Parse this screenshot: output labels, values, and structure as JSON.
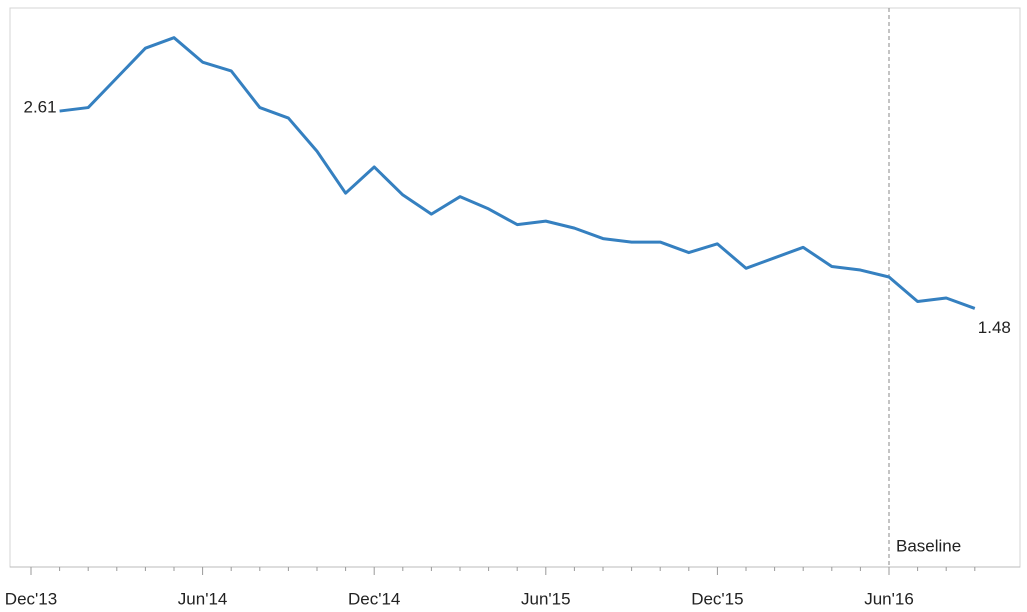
{
  "chart_data": {
    "type": "line",
    "categories": [
      "Dec'13",
      null,
      null,
      null,
      null,
      null,
      "Jun'14",
      null,
      null,
      null,
      null,
      null,
      "Dec'14",
      null,
      null,
      null,
      null,
      null,
      "Jun'15",
      null,
      null,
      null,
      null,
      null,
      "Dec'15",
      null,
      null,
      null,
      null,
      null,
      "Jun'16",
      null,
      null,
      null
    ],
    "series": [
      {
        "color": "#3580c0",
        "values": [
          null,
          2.61,
          2.63,
          2.8,
          2.97,
          3.03,
          2.89,
          2.84,
          2.63,
          2.57,
          2.38,
          2.14,
          2.29,
          2.13,
          2.02,
          2.12,
          2.05,
          1.96,
          1.98,
          1.94,
          1.88,
          1.86,
          1.86,
          1.8,
          1.85,
          1.71,
          1.77,
          1.83,
          1.72,
          1.7,
          1.66,
          1.52,
          1.54,
          1.48
        ],
        "value_labels": [
          null,
          "2.61",
          null,
          null,
          null,
          null,
          null,
          null,
          null,
          null,
          null,
          null,
          null,
          null,
          null,
          null,
          null,
          null,
          null,
          null,
          null,
          null,
          null,
          null,
          null,
          null,
          null,
          null,
          null,
          null,
          null,
          null,
          null,
          "1.48"
        ]
      }
    ],
    "ylim": [
      0,
      3.2
    ],
    "annotations": [
      {
        "label": "Baseline",
        "at": "Jun'16"
      }
    ]
  }
}
